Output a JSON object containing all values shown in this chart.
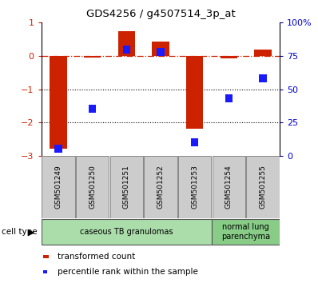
{
  "title": "GDS4256 / g4507514_3p_at",
  "samples": [
    "GSM501249",
    "GSM501250",
    "GSM501251",
    "GSM501252",
    "GSM501253",
    "GSM501254",
    "GSM501255"
  ],
  "transformed_count": [
    -2.8,
    -0.05,
    0.75,
    0.42,
    -2.2,
    -0.08,
    0.18
  ],
  "percentile_rank": [
    5,
    35,
    80,
    78,
    10,
    43,
    58
  ],
  "ylim_left": [
    -3,
    1
  ],
  "ylim_right": [
    0,
    100
  ],
  "yticks_left": [
    -3,
    -2,
    -1,
    0,
    1
  ],
  "yticks_right": [
    0,
    25,
    50,
    75,
    100
  ],
  "ytick_labels_right": [
    "0",
    "25",
    "50",
    "75",
    "100%"
  ],
  "dotted_lines": [
    -1,
    -2
  ],
  "bar_color": "#cc2200",
  "dot_color": "#1a1aff",
  "cell_types": [
    {
      "label": "caseous TB granulomas",
      "indices": [
        0,
        1,
        2,
        3,
        4
      ],
      "color": "#aaddaa"
    },
    {
      "label": "normal lung\nparenchyma",
      "indices": [
        5,
        6
      ],
      "color": "#88cc88"
    }
  ],
  "legend_bar_label": "transformed count",
  "legend_dot_label": "percentile rank within the sample",
  "cell_type_label": "cell type",
  "tick_label_color_left": "#cc2200",
  "tick_label_color_right": "#0000cc",
  "sample_box_color": "#cccccc",
  "bar_width": 0.5
}
